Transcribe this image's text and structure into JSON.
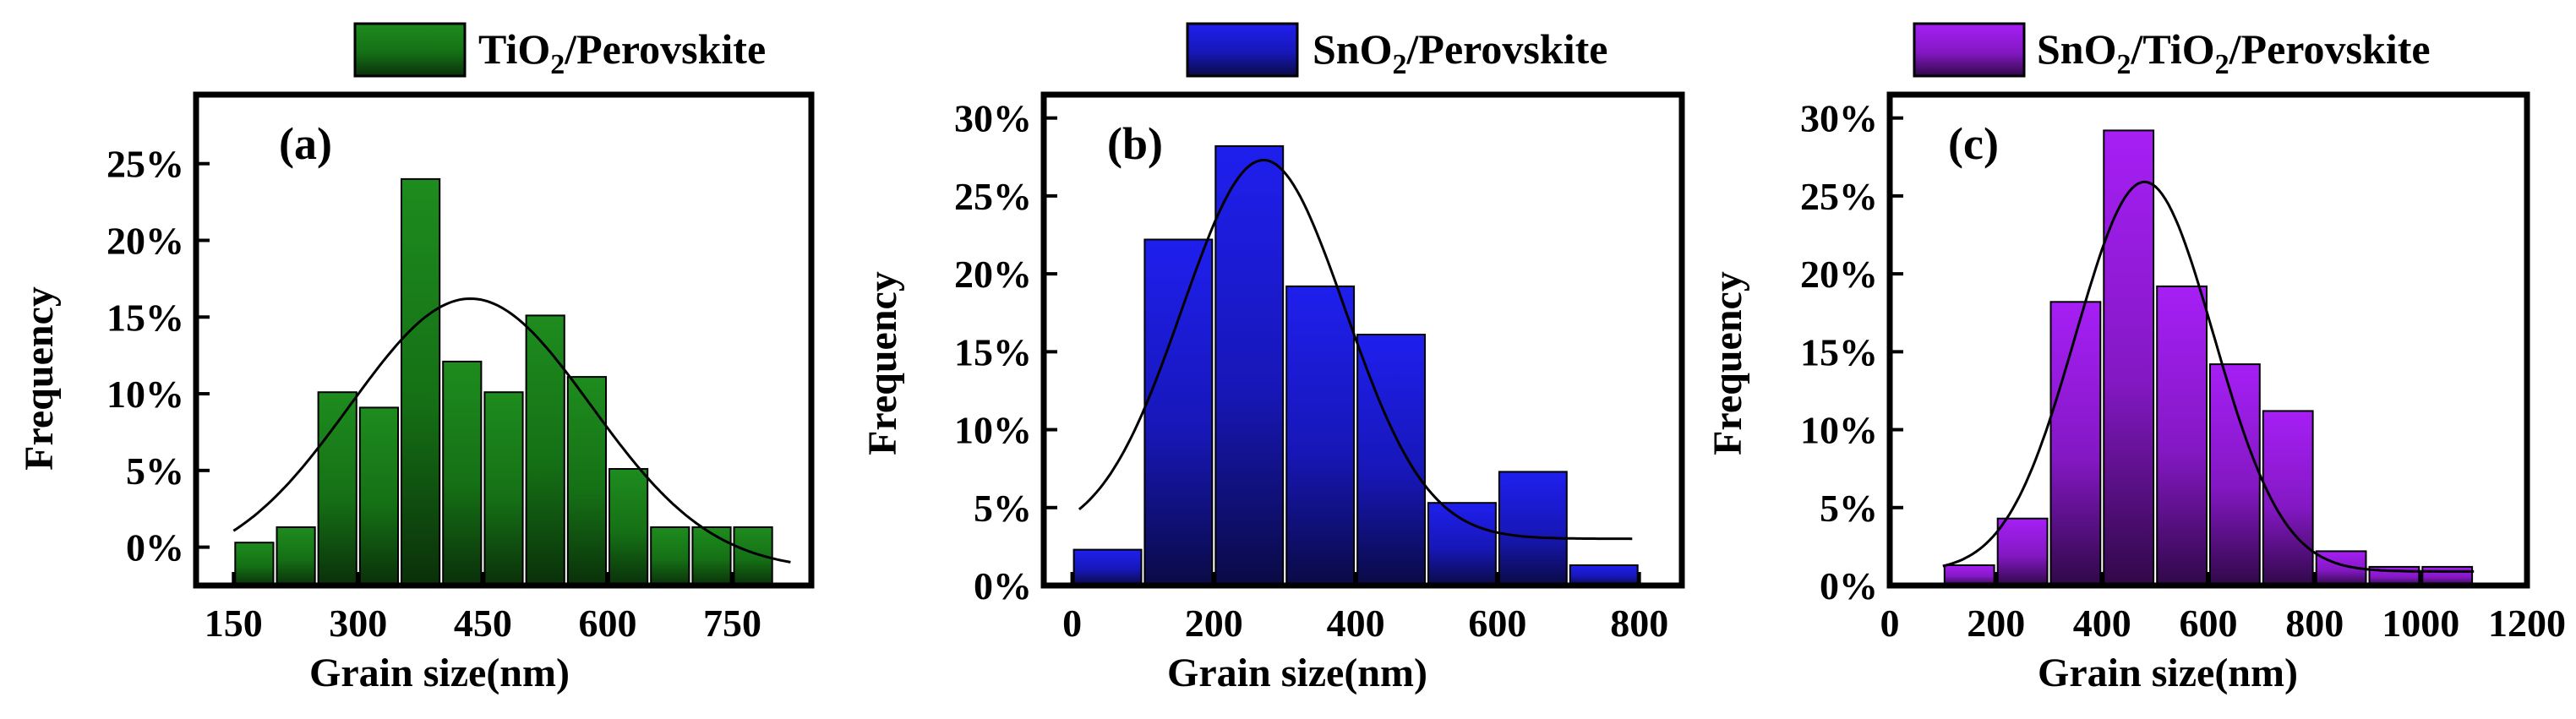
{
  "chart_data": [
    {
      "type": "bar",
      "panel_label": "(a)",
      "legend": {
        "prefix": "TiO",
        "sub": "2",
        "suffix": "/Perovskite",
        "placement": "top"
      },
      "color": "#1a8a1a",
      "xlabel": "Grain size(nm)",
      "ylabel": "Frequency",
      "xlim": [
        105,
        845
      ],
      "ylim": [
        -2.5,
        29.5
      ],
      "xticks": [
        150,
        300,
        450,
        600,
        750
      ],
      "yticks": [
        0,
        5,
        10,
        15,
        20,
        25
      ],
      "bin_width": 50,
      "bins": [
        {
          "center": 175,
          "value": 0.3
        },
        {
          "center": 225,
          "value": 1.3
        },
        {
          "center": 275,
          "value": 10.1
        },
        {
          "center": 325,
          "value": 9.1
        },
        {
          "center": 375,
          "value": 24.0
        },
        {
          "center": 425,
          "value": 12.1
        },
        {
          "center": 475,
          "value": 10.1
        },
        {
          "center": 525,
          "value": 15.1
        },
        {
          "center": 575,
          "value": 11.1
        },
        {
          "center": 625,
          "value": 5.1
        },
        {
          "center": 675,
          "value": 1.3
        },
        {
          "center": 725,
          "value": 1.3
        },
        {
          "center": 775,
          "value": 1.3
        }
      ],
      "fit": {
        "type": "gaussian",
        "y0": -1.5,
        "amplitude": 17.7,
        "center": 435,
        "sigma": 145,
        "x_range": [
          150,
          820
        ]
      }
    },
    {
      "type": "bar",
      "panel_label": "(b)",
      "legend": {
        "prefix": "SnO",
        "sub": "2",
        "suffix": "/Perovskite",
        "placement": "top"
      },
      "color": "#1a1aee",
      "xlabel": "Grain size(nm)",
      "ylabel": "Frequency",
      "xlim": [
        -40,
        860
      ],
      "ylim": [
        0,
        31.5
      ],
      "xticks": [
        0,
        200,
        400,
        600,
        800
      ],
      "yticks": [
        0,
        5,
        10,
        15,
        20,
        25,
        30
      ],
      "bin_width": 100,
      "bins": [
        {
          "center": 50,
          "value": 2.3
        },
        {
          "center": 150,
          "value": 22.2
        },
        {
          "center": 250,
          "value": 28.2
        },
        {
          "center": 350,
          "value": 19.2
        },
        {
          "center": 450,
          "value": 16.1
        },
        {
          "center": 550,
          "value": 5.3
        },
        {
          "center": 650,
          "value": 7.3
        },
        {
          "center": 750,
          "value": 1.3
        }
      ],
      "fit": {
        "type": "gaussian",
        "y0": 3.0,
        "amplitude": 24.3,
        "center": 270,
        "sigma": 115,
        "x_range": [
          10,
          790
        ]
      }
    },
    {
      "type": "bar",
      "panel_label": "(c)",
      "legend": {
        "prefix": "SnO",
        "sub": "2",
        "mid": "/TiO",
        "sub2": "2",
        "suffix": "/Perovskite",
        "placement": "top"
      },
      "color": "#a020f0",
      "xlabel": "Grain size(nm)",
      "ylabel": "Frequency",
      "xlim": [
        0,
        1200
      ],
      "ylim": [
        0,
        31.5
      ],
      "xticks": [
        0,
        200,
        400,
        600,
        800,
        1000,
        1200
      ],
      "yticks": [
        0,
        5,
        10,
        15,
        20,
        25,
        30
      ],
      "bin_width": 100,
      "bins": [
        {
          "center": 150,
          "value": 1.3
        },
        {
          "center": 250,
          "value": 4.3
        },
        {
          "center": 350,
          "value": 18.2
        },
        {
          "center": 450,
          "value": 29.2
        },
        {
          "center": 550,
          "value": 19.2
        },
        {
          "center": 650,
          "value": 14.2
        },
        {
          "center": 750,
          "value": 11.2
        },
        {
          "center": 850,
          "value": 2.2
        },
        {
          "center": 950,
          "value": 1.2
        },
        {
          "center": 1050,
          "value": 1.2
        }
      ],
      "fit": {
        "type": "gaussian",
        "y0": 0.9,
        "amplitude": 25.0,
        "center": 480,
        "sigma": 130,
        "x_range": [
          100,
          1100
        ]
      }
    }
  ]
}
